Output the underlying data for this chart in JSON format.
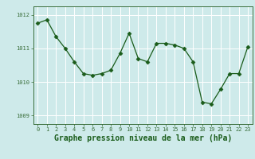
{
  "x": [
    0,
    1,
    2,
    3,
    4,
    5,
    6,
    7,
    8,
    9,
    10,
    11,
    12,
    13,
    14,
    15,
    16,
    17,
    18,
    19,
    20,
    21,
    22,
    23
  ],
  "y": [
    1011.75,
    1011.85,
    1011.35,
    1011.0,
    1010.6,
    1010.25,
    1010.2,
    1010.25,
    1010.35,
    1010.85,
    1011.45,
    1010.7,
    1010.6,
    1011.15,
    1011.15,
    1011.1,
    1011.0,
    1010.6,
    1009.4,
    1009.35,
    1009.78,
    1010.25,
    1010.25,
    1011.05
  ],
  "line_color": "#1a5c1a",
  "marker": "D",
  "marker_size": 2.5,
  "bg_color": "#ceeaea",
  "grid_color": "#ffffff",
  "axis_color": "#3a6e3a",
  "xlabel": "Graphe pression niveau de la mer (hPa)",
  "ylim": [
    1008.75,
    1012.25
  ],
  "xlim": [
    -0.5,
    23.5
  ],
  "yticks": [
    1009,
    1010,
    1011,
    1012
  ],
  "xticks": [
    0,
    1,
    2,
    3,
    4,
    5,
    6,
    7,
    8,
    9,
    10,
    11,
    12,
    13,
    14,
    15,
    16,
    17,
    18,
    19,
    20,
    21,
    22,
    23
  ],
  "label_fontsize": 7.0,
  "tick_fontsize": 5.0
}
